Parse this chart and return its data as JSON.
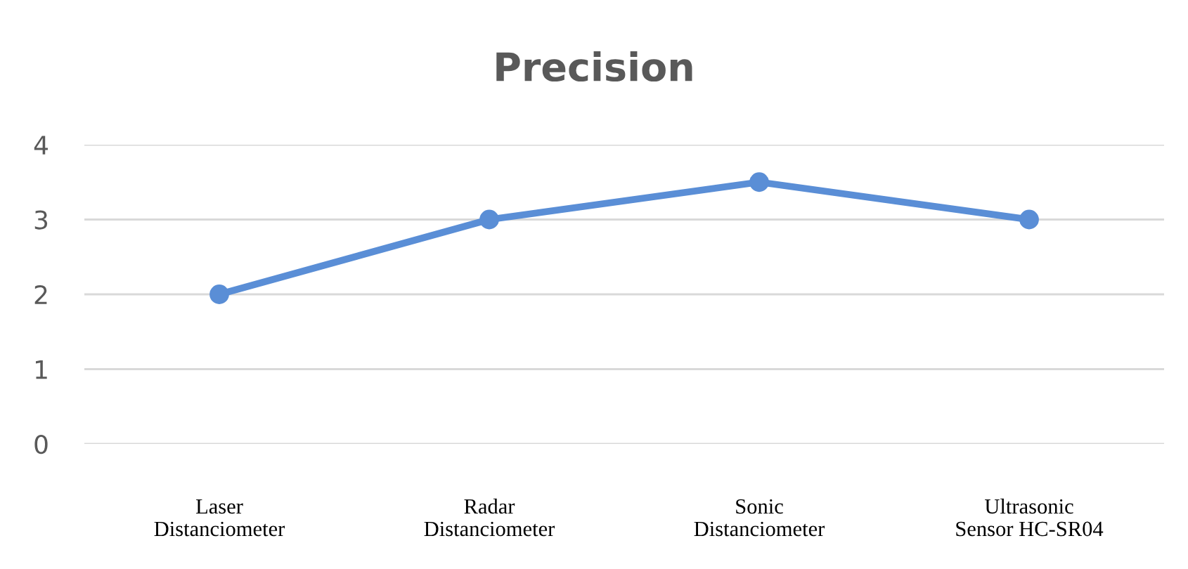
{
  "chart_data": {
    "type": "line",
    "title": "Precision",
    "categories": [
      "Laser\nDistanciometer",
      "Radar\nDistanciometer",
      "Sonic\nDistanciometer",
      "Ultrasonic\nSensor HC-SR04"
    ],
    "series": [
      {
        "color": "#5a8ed6",
        "values": [
          2,
          3,
          3.5,
          3
        ]
      }
    ],
    "ylim": [
      0,
      4
    ],
    "yticks": [
      0,
      1,
      2,
      3,
      4
    ],
    "grid": "y",
    "marker": "circle",
    "line_style": "solid",
    "legend": false
  }
}
